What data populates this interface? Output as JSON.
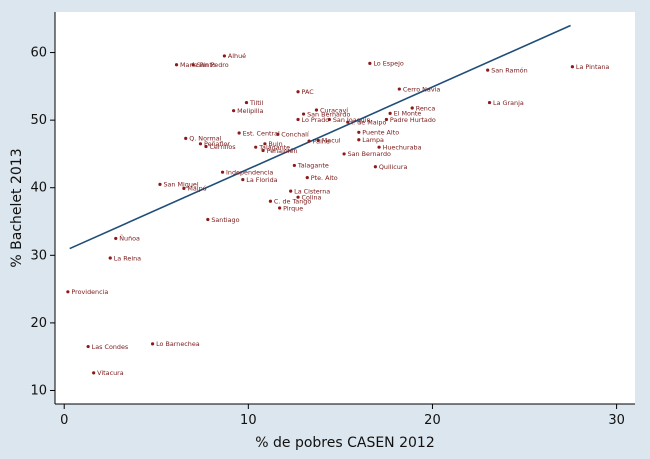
{
  "colors": {
    "background": "#dce6ee",
    "plot_background": "#ffffff",
    "marker": "#8b1a1a",
    "fit_line": "#1f4e79",
    "axis": "#000000",
    "label": "#7a1a1a"
  },
  "chart_data": {
    "type": "scatter",
    "xlabel": "% de pobres CASEN 2012",
    "ylabel": "% Bachelet 2013",
    "xlim": [
      -0.5,
      31
    ],
    "ylim": [
      8,
      66
    ],
    "xticks": [
      0,
      10,
      20,
      30
    ],
    "yticks": [
      10,
      20,
      30,
      40,
      50,
      60
    ],
    "grid": false,
    "fit_line": {
      "x": [
        0.3,
        27.5
      ],
      "y": [
        31,
        64
      ]
    },
    "points": [
      {
        "name": "Alhué",
        "x": 8.7,
        "y": 59.5
      },
      {
        "name": "María Pinto",
        "x": 6.1,
        "y": 58.2
      },
      {
        "name": "San Pedro",
        "x": 7.0,
        "y": 58.2
      },
      {
        "name": "Lo Espejo",
        "x": 16.6,
        "y": 58.4
      },
      {
        "name": "San Ramón",
        "x": 23.0,
        "y": 57.4
      },
      {
        "name": "La Pintana",
        "x": 27.6,
        "y": 57.9
      },
      {
        "name": "Cerro Navia",
        "x": 18.2,
        "y": 54.6
      },
      {
        "name": "PAC",
        "x": 12.7,
        "y": 54.2
      },
      {
        "name": "Tiltil",
        "x": 9.9,
        "y": 52.6
      },
      {
        "name": "La Granja",
        "x": 23.1,
        "y": 52.6
      },
      {
        "name": "Renca",
        "x": 18.9,
        "y": 51.8
      },
      {
        "name": "Melipilla",
        "x": 9.2,
        "y": 51.4
      },
      {
        "name": "Curacaví",
        "x": 13.7,
        "y": 51.5
      },
      {
        "name": "El Monte",
        "x": 17.7,
        "y": 51.0
      },
      {
        "name": "San Joaquín",
        "x": 14.4,
        "y": 50.1
      },
      {
        "name": "Lo Prado",
        "x": 12.7,
        "y": 50.1
      },
      {
        "name": "Padre Hurtado",
        "x": 17.5,
        "y": 50.1
      },
      {
        "name": "San Bernardo",
        "x": 13.0,
        "y": 50.9
      },
      {
        "name": "I. de Maipo",
        "x": 15.4,
        "y": 49.7
      },
      {
        "name": "Est. Central",
        "x": 9.5,
        "y": 48.1
      },
      {
        "name": "Conchalí",
        "x": 11.6,
        "y": 47.9
      },
      {
        "name": "Puente Alto",
        "x": 16.0,
        "y": 48.2
      },
      {
        "name": "Lampa",
        "x": 16.0,
        "y": 47.1
      },
      {
        "name": "Q. Normal",
        "x": 6.6,
        "y": 47.3
      },
      {
        "name": "Peñaflor",
        "x": 7.4,
        "y": 46.5
      },
      {
        "name": "Cerrillos",
        "x": 7.7,
        "y": 46.1
      },
      {
        "name": "Macul",
        "x": 13.8,
        "y": 47.0
      },
      {
        "name": "Paine",
        "x": 13.3,
        "y": 46.9
      },
      {
        "name": "Buin",
        "x": 10.9,
        "y": 46.5
      },
      {
        "name": "Talagante",
        "x": 10.4,
        "y": 46.0
      },
      {
        "name": "Peñalolén",
        "x": 10.8,
        "y": 45.5
      },
      {
        "name": "Huechuraba",
        "x": 17.1,
        "y": 46.0
      },
      {
        "name": "San Bernardo",
        "x": 15.2,
        "y": 45.0
      },
      {
        "name": "Independencia",
        "x": 8.6,
        "y": 42.3
      },
      {
        "name": "Quilicura",
        "x": 16.9,
        "y": 43.1
      },
      {
        "name": "Talagante",
        "x": 12.5,
        "y": 43.3
      },
      {
        "name": "San Miguel",
        "x": 5.2,
        "y": 40.5
      },
      {
        "name": "La Florida",
        "x": 9.7,
        "y": 41.2
      },
      {
        "name": "Pte. Alto",
        "x": 13.2,
        "y": 41.5
      },
      {
        "name": "Maipú",
        "x": 6.5,
        "y": 39.9
      },
      {
        "name": "La Cisterna",
        "x": 12.3,
        "y": 39.5
      },
      {
        "name": "Colina",
        "x": 12.7,
        "y": 38.6
      },
      {
        "name": "C. de Tango",
        "x": 11.2,
        "y": 38.0
      },
      {
        "name": "Pirque",
        "x": 11.7,
        "y": 37.0
      },
      {
        "name": "Santiago",
        "x": 7.8,
        "y": 35.3
      },
      {
        "name": "Ñuñoa",
        "x": 2.8,
        "y": 32.5
      },
      {
        "name": "La Reina",
        "x": 2.5,
        "y": 29.6
      },
      {
        "name": "Providencia",
        "x": 0.2,
        "y": 24.6
      },
      {
        "name": "Las Condes",
        "x": 1.3,
        "y": 16.5
      },
      {
        "name": "Lo Barnechea",
        "x": 4.8,
        "y": 16.9
      },
      {
        "name": "Vitacura",
        "x": 1.6,
        "y": 12.6
      }
    ]
  }
}
